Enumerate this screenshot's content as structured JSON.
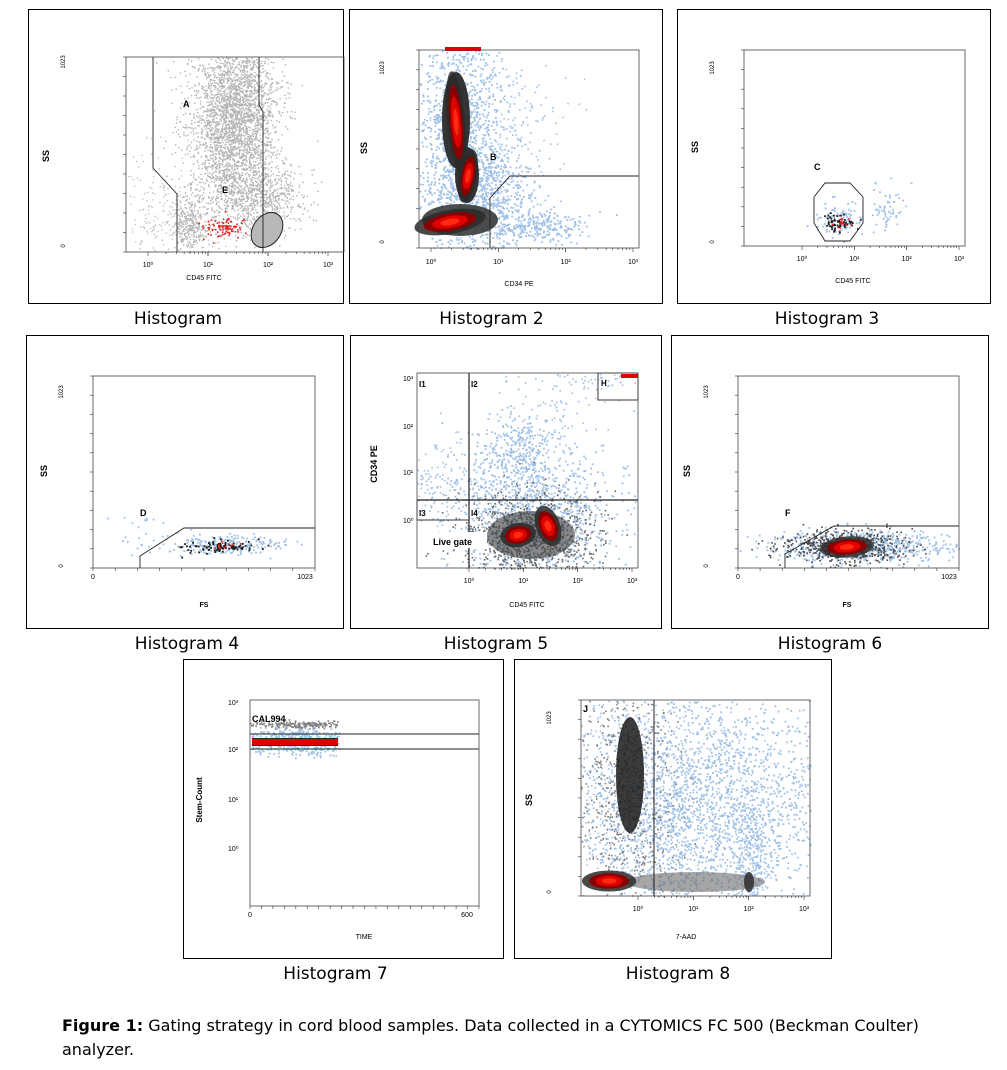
{
  "figure": {
    "label": "Figure 1:",
    "text": "Gating strategy in cord blood samples. Data collected in a CYTOMICS FC 500 (Beckman Coulter)   analyzer."
  },
  "chart_data": [
    {
      "id": "h1",
      "type": "scatter",
      "caption": "Histogram",
      "xlabel": "CD45 FITC",
      "ylabel": "SS",
      "xscale": "log",
      "xticks": [
        "10⁰",
        "10¹",
        "10²",
        "10³"
      ],
      "yticks": [
        "0",
        "1023"
      ],
      "gates": [
        "A",
        "E"
      ]
    },
    {
      "id": "h2",
      "type": "scatter",
      "caption": "Histogram 2",
      "xlabel": "CD34 PE",
      "ylabel": "SS",
      "xscale": "log",
      "xticks": [
        "10⁰",
        "10¹",
        "10²",
        "10³"
      ],
      "yticks": [
        "0",
        "1023"
      ],
      "gates": [
        "B"
      ]
    },
    {
      "id": "h3",
      "type": "scatter",
      "caption": "Histogram 3",
      "xlabel": "CD45 FITC",
      "ylabel": "SS",
      "xscale": "log",
      "xticks": [
        "10⁰",
        "10¹",
        "10²",
        "10³"
      ],
      "yticks": [
        "0",
        "1023"
      ],
      "gates": [
        "C"
      ]
    },
    {
      "id": "h4",
      "type": "scatter",
      "caption": "Histogram 4",
      "xlabel": "FS",
      "ylabel": "SS",
      "xticks": [
        "0",
        "1023"
      ],
      "yticks": [
        "0",
        "1023"
      ],
      "gates": [
        "D"
      ]
    },
    {
      "id": "h5",
      "type": "scatter",
      "caption": "Histogram 5",
      "xlabel": "CD45 FITC",
      "ylabel": "CD34 PE",
      "xscale": "log",
      "yscale": "log",
      "xticks": [
        "10⁰",
        "10¹",
        "10²",
        "10³"
      ],
      "yticks": [
        "10⁰",
        "10¹",
        "10²",
        "10³"
      ],
      "gates": [
        "I1",
        "I2",
        "I3",
        "I4",
        "H",
        "Live gate"
      ]
    },
    {
      "id": "h6",
      "type": "scatter",
      "caption": "Histogram 6",
      "xlabel": "FS",
      "ylabel": "SS",
      "xticks": [
        "0",
        "1023"
      ],
      "yticks": [
        "0",
        "1023"
      ],
      "gates": [
        "F"
      ]
    },
    {
      "id": "h7",
      "type": "scatter",
      "caption": "Histogram 7",
      "xlabel": "TIME",
      "ylabel": "Stem-Count",
      "yscale": "log",
      "xticks": [
        "0",
        "600"
      ],
      "yticks": [
        "10⁰",
        "10¹",
        "10²",
        "10³"
      ],
      "gates": [
        "CAL994"
      ]
    },
    {
      "id": "h8",
      "type": "scatter",
      "caption": "Histogram 8",
      "xlabel": "7-AAD",
      "ylabel": "SS",
      "xscale": "log",
      "xticks": [
        "10⁰",
        "10¹",
        "10²",
        "10³"
      ],
      "yticks": [
        "0",
        "1023"
      ],
      "gates": [
        "J"
      ]
    }
  ]
}
